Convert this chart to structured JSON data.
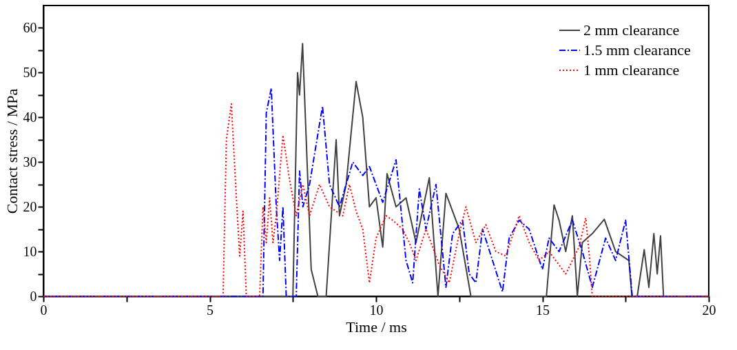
{
  "chart_data": {
    "type": "line",
    "xlabel": "Time / ms",
    "ylabel": "Contact stress / MPa",
    "xlim": [
      0,
      20
    ],
    "ylim": [
      0,
      65
    ],
    "xticks": [
      0,
      {
        "value": 2.5,
        "label": null
      },
      5,
      {
        "value": 7.5,
        "label": null
      },
      10,
      {
        "value": 12.5,
        "label": null
      },
      15,
      {
        "value": 17.5,
        "label": null
      },
      20
    ],
    "yticks": [
      0,
      {
        "value": 5,
        "label": null
      },
      10,
      {
        "value": 15,
        "label": null
      },
      20,
      {
        "value": 25,
        "label": null
      },
      30,
      {
        "value": 35,
        "label": null
      },
      40,
      {
        "value": 45,
        "label": null
      },
      50,
      {
        "value": 55,
        "label": null
      },
      60
    ],
    "grid": false,
    "legend": "top right",
    "marker": "none",
    "series": [
      {
        "name": "2 mm  clearance",
        "color": "#404040",
        "line_style": "solid",
        "x": [
          0,
          7.5,
          7.64,
          7.7,
          7.79,
          8.05,
          8.25,
          8.5,
          8.8,
          8.9,
          9.1,
          9.4,
          9.6,
          9.8,
          10.0,
          10.2,
          10.33,
          10.6,
          10.9,
          11.2,
          11.6,
          11.86,
          12.1,
          12.5,
          12.85,
          15.12,
          15.35,
          15.5,
          15.7,
          15.9,
          16.05,
          16.2,
          16.5,
          16.86,
          17.2,
          17.6,
          17.69,
          17.85,
          18.06,
          18.2,
          18.35,
          18.45,
          18.55,
          18.64,
          20
        ],
        "values": [
          0,
          0,
          50,
          45,
          56.5,
          6,
          0,
          0,
          35,
          18,
          25,
          48,
          40,
          20,
          22,
          11,
          27.4,
          20,
          22,
          12,
          26.5,
          0,
          23,
          15,
          0,
          0,
          20.4,
          17,
          10,
          18,
          0,
          12,
          14,
          17.2,
          10,
          8,
          0,
          0,
          10.4,
          2,
          14,
          5,
          13.5,
          0,
          0
        ]
      },
      {
        "name": "1.5 mm  clearance",
        "color": "#0000ff",
        "line_style": "dashdot",
        "x": [
          0,
          6.6,
          6.7,
          6.85,
          7.0,
          7.1,
          7.2,
          7.3,
          7.6,
          7.7,
          7.8,
          8.0,
          8.39,
          8.6,
          8.9,
          9.3,
          9.6,
          9.8,
          10.2,
          10.6,
          10.9,
          11.1,
          11.3,
          11.5,
          11.8,
          12.1,
          12.3,
          12.6,
          12.8,
          13.0,
          13.2,
          13.5,
          13.8,
          14.0,
          14.3,
          14.6,
          15.0,
          15.2,
          15.5,
          15.9,
          16.2,
          16.5,
          16.9,
          17.2,
          17.5,
          17.7,
          20
        ],
        "values": [
          0,
          0,
          41,
          46.5,
          20,
          8,
          20,
          0,
          0,
          28,
          20,
          25,
          42.5,
          25,
          20,
          30,
          27,
          29,
          21,
          30.5,
          8,
          3,
          24,
          15,
          25,
          2,
          14,
          17,
          5,
          3,
          15,
          8,
          1,
          13,
          17,
          15,
          6,
          13,
          10,
          17,
          10,
          2,
          13,
          8,
          17,
          0,
          0
        ]
      },
      {
        "name": "1 mm  clearance",
        "color": "#ff0000",
        "line_style": "dotted",
        "x": [
          0,
          5.4,
          5.5,
          5.65,
          5.8,
          5.9,
          6.0,
          6.1,
          6.5,
          6.6,
          6.7,
          6.8,
          6.9,
          7.0,
          7.2,
          7.4,
          7.6,
          7.8,
          8.0,
          8.3,
          8.6,
          9.0,
          9.2,
          9.4,
          9.6,
          9.8,
          10.0,
          10.3,
          10.5,
          10.8,
          11.0,
          11.2,
          11.5,
          11.9,
          12.2,
          12.5,
          12.7,
          13.0,
          13.3,
          13.6,
          13.9,
          14.3,
          14.6,
          14.9,
          15.2,
          15.7,
          16.1,
          16.3,
          16.4,
          16.5,
          20
        ],
        "values": [
          0,
          0,
          35,
          43,
          22,
          9,
          19,
          0,
          0,
          20,
          12,
          22,
          12,
          18,
          36,
          26,
          18,
          25,
          18,
          25,
          20,
          18,
          25,
          19,
          15,
          3,
          13,
          18,
          17,
          15,
          12,
          8,
          15,
          7,
          3,
          14,
          20,
          12,
          16,
          10,
          9,
          18,
          12,
          8,
          10,
          5,
          11,
          17.5,
          10,
          0,
          0
        ]
      }
    ]
  }
}
